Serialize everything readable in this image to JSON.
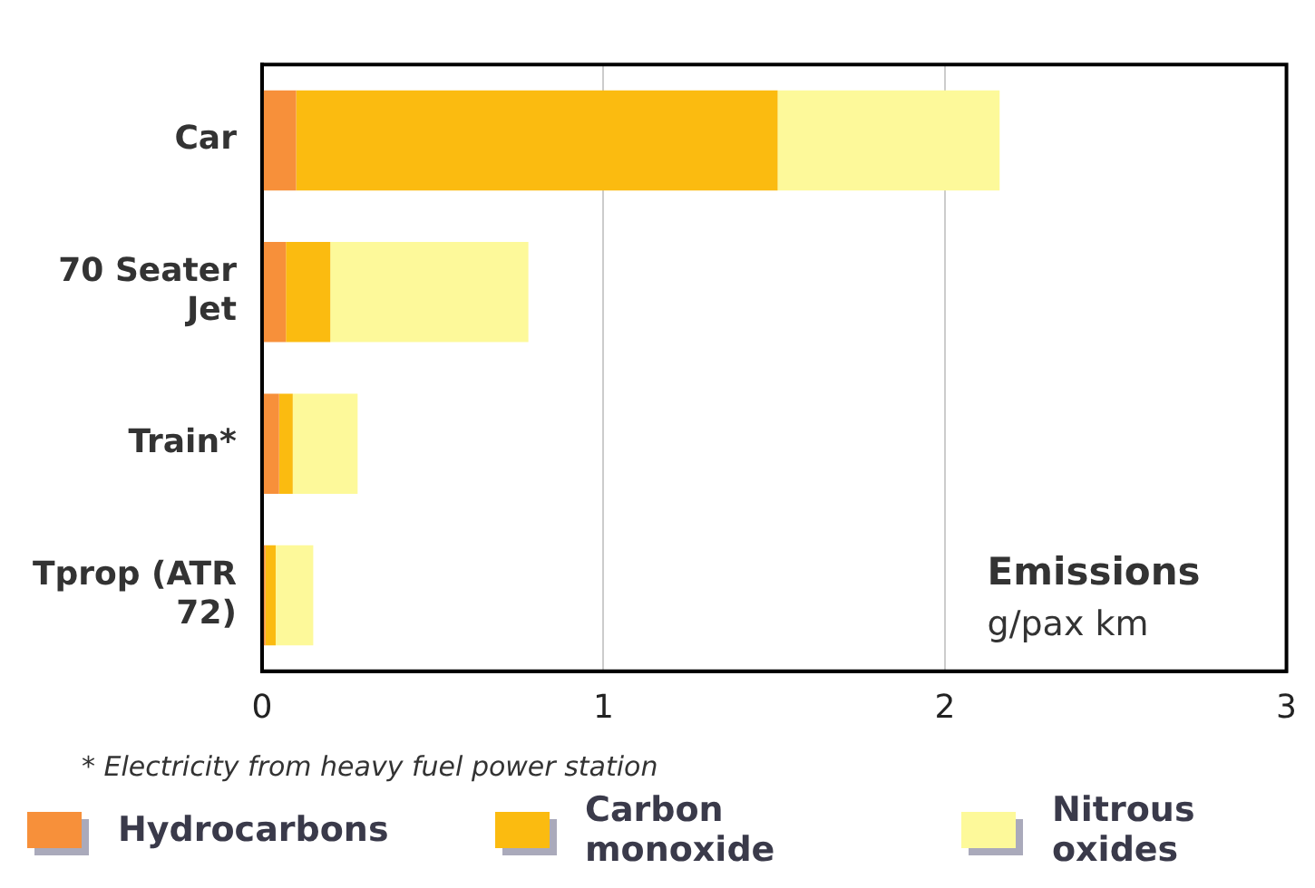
{
  "chart_data": {
    "type": "bar",
    "orientation": "horizontal",
    "stacked": true,
    "xlabel": "Emissions g/pax km",
    "categories": [
      "Car",
      "70 Seater Jet",
      "Train*",
      "Tprop (ATR 72)"
    ],
    "series": [
      {
        "name": "Hydrocarbons",
        "color": "#f7903a",
        "values": [
          0.1,
          0.07,
          0.05,
          0.01
        ]
      },
      {
        "name": "Carbon monoxide",
        "color": "#fbbb10",
        "values": [
          1.41,
          0.13,
          0.04,
          0.03
        ]
      },
      {
        "name": "Nitrous oxides",
        "color": "#fdf99a",
        "values": [
          0.65,
          0.58,
          0.19,
          0.11
        ]
      }
    ],
    "xlim": [
      0,
      3
    ],
    "xticks": [
      0,
      1,
      2,
      3
    ],
    "grid": "x",
    "legend": "bottom",
    "annotations": [
      "* Electricity from heavy fuel power station"
    ]
  }
}
